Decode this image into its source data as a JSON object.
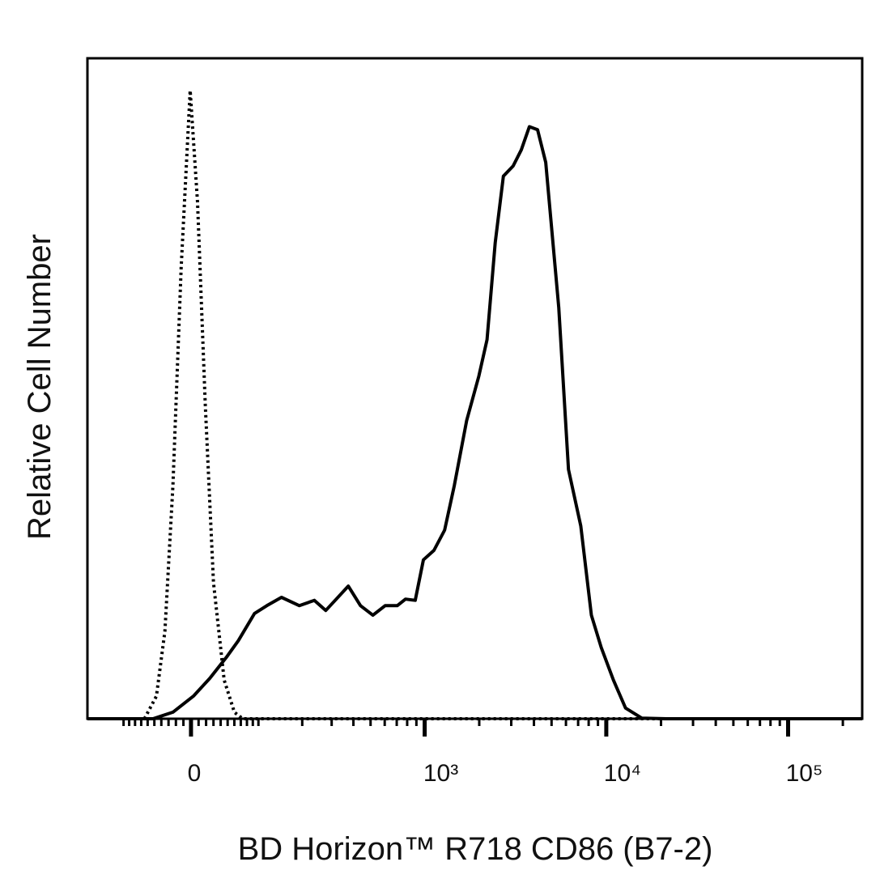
{
  "chart_data": {
    "type": "line",
    "x_label": "BD Horizon™ R718 CD86 (B7-2)",
    "y_label": "Relative Cell Number",
    "x_scale": "biexponential",
    "xlim": [
      -179,
      255528
    ],
    "ylim": [
      0,
      111
    ],
    "xticks": [
      0,
      {
        "value": 1000,
        "label": "10³"
      },
      {
        "value": 10000,
        "label": "10⁴"
      },
      {
        "value": 100000,
        "label": "10⁵"
      }
    ],
    "xminorticks": [
      -100,
      -90,
      -80,
      -70,
      -60,
      -50,
      -40,
      -30,
      -20,
      -10,
      10,
      20,
      30,
      40,
      50,
      60,
      70,
      80,
      90,
      100,
      200,
      300,
      400,
      500,
      600,
      700,
      800,
      900,
      2000,
      3000,
      4000,
      5000,
      6000,
      7000,
      8000,
      9000,
      20000,
      30000,
      40000,
      50000,
      60000,
      70000,
      80000,
      90000,
      200000
    ],
    "series": [
      {
        "color": "#000000",
        "dash": "dotted",
        "x": [
          -65,
          -47,
          -35,
          -24,
          -13,
          -1.1,
          8.6,
          19,
          30,
          45,
          60,
          73,
          255528
        ],
        "values": [
          0,
          3.8,
          14.7,
          39.2,
          75.9,
          105.6,
          86.8,
          52.7,
          22.9,
          6.5,
          1.1,
          0,
          0
        ]
      },
      {
        "color": "#000000",
        "dash": "solid",
        "x": [
          -179,
          -52,
          -24,
          3.2,
          25,
          48,
          66,
          93,
          116,
          147,
          192,
          237,
          277,
          319,
          374,
          439,
          515,
          603,
          705,
          783,
          887,
          984,
          1125,
          1289,
          1458,
          1704,
          1990,
          2207,
          2448,
          2715,
          3073,
          3407,
          3777,
          4188,
          4644,
          5477,
          6198,
          7238,
          8278,
          9370,
          10941,
          12760,
          15694,
          21403,
          255528
        ],
        "values": [
          0,
          0,
          1.1,
          3.8,
          6.8,
          10.3,
          13.1,
          17.7,
          19.0,
          20.4,
          19.0,
          19.9,
          18.2,
          20.1,
          22.3,
          19.0,
          17.4,
          19.0,
          19.0,
          20.1,
          19.9,
          26.7,
          28.3,
          31.7,
          39.2,
          50.1,
          57.6,
          63.7,
          80.0,
          91.2,
          92.9,
          95.6,
          99.5,
          99.0,
          93.5,
          69.1,
          41.9,
          32.4,
          17.4,
          12.0,
          6.5,
          1.8,
          0.1,
          0,
          0
        ]
      }
    ]
  }
}
